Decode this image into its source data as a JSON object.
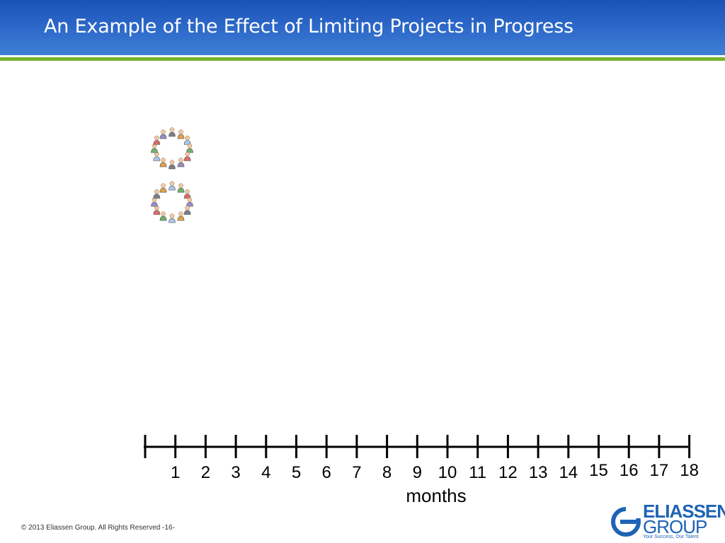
{
  "slide": {
    "title": "An Example of the Effect of Limiting Projects in Progress",
    "footer": "© 2013 Eliassen Group. All Rights Reserved -16-"
  },
  "logo": {
    "name": "ELIASSEN",
    "group": "GROUP",
    "tagline": "Your Success, Our Talent"
  },
  "teams": [
    {
      "name": "team-1",
      "icon": "people-circle-icon"
    },
    {
      "name": "team-2",
      "icon": "people-circle-icon"
    }
  ],
  "timeline": {
    "unit": "months",
    "ticks": [
      "1",
      "2",
      "3",
      "4",
      "5",
      "6",
      "7",
      "8",
      "9",
      "10",
      "11",
      "12",
      "13",
      "14",
      "15",
      "16",
      "17",
      "18"
    ]
  },
  "colors": {
    "title_bar": "#2b66c7",
    "rule": "#77b52a",
    "logo": "#1e63b5",
    "person_colors": [
      "#7d7d8a",
      "#e2a24a",
      "#a9c4e8",
      "#6fb36a",
      "#d96b6b",
      "#9a8cc9"
    ]
  }
}
